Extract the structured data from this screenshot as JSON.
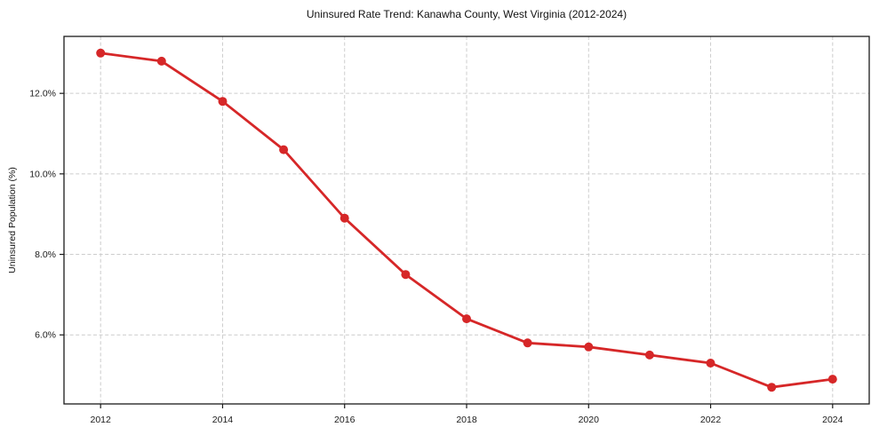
{
  "page": {
    "background": "#ffffff"
  },
  "chart_data": {
    "type": "line",
    "title": "Uninsured Rate Trend: Kanawha County, West Virginia (2012-2024)",
    "xlabel": "",
    "ylabel": "Uninsured Population (%)",
    "series": [
      {
        "name": "Uninsured rate",
        "x": [
          2012,
          2013,
          2014,
          2015,
          2016,
          2017,
          2018,
          2019,
          2020,
          2021,
          2022,
          2023,
          2024
        ],
        "values": [
          13.0,
          12.8,
          11.8,
          10.6,
          8.9,
          7.5,
          6.4,
          5.8,
          5.7,
          5.5,
          5.3,
          4.7,
          4.9
        ]
      }
    ],
    "xlim": [
      2011.4,
      2024.6
    ],
    "ylim": [
      4.285,
      13.415
    ],
    "x_ticks": {
      "values": [
        2012,
        2014,
        2016,
        2018,
        2020,
        2022,
        2024
      ],
      "labels": [
        "2012",
        "2014",
        "2016",
        "2018",
        "2020",
        "2022",
        "2024"
      ]
    },
    "y_ticks": {
      "values": [
        6,
        8,
        10,
        12
      ],
      "labels": [
        "6.0%",
        "8.0%",
        "10.0%",
        "12.0%"
      ]
    },
    "grid": true,
    "legend_position": "none",
    "colors": {
      "line": "#d62728",
      "marker": "#d62728",
      "grid": "#cccccc",
      "spine": "#1a1a1a",
      "text": "#111111"
    },
    "marker": "circle",
    "marker_radius": 5
  }
}
